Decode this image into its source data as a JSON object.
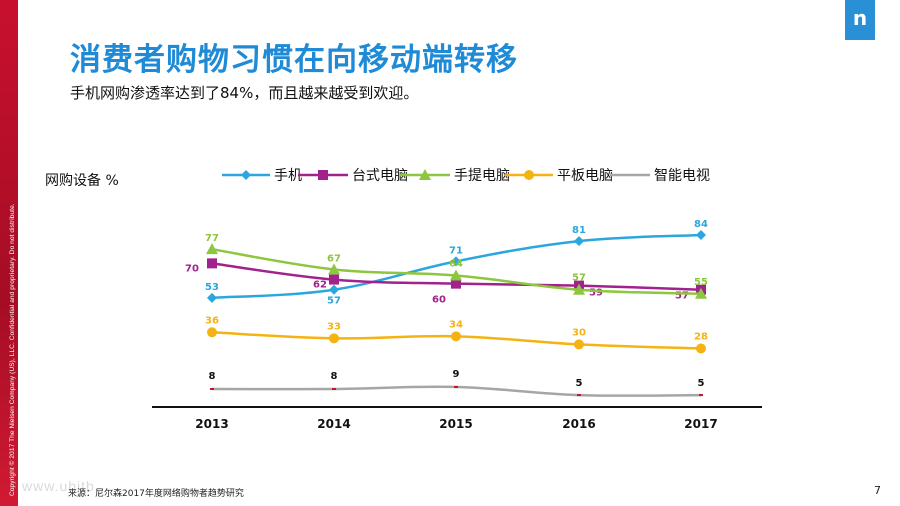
{
  "slide": {
    "title": "消费者购物习惯在向移动端转移",
    "subtitle": "手机网购渗透率达到了84%，而且越来越受到欢迎。",
    "source": "来源：尼尔森2017年度网络购物者趋势研究",
    "page_number": "7",
    "copyright": "Copyright © 2017 The Nielsen Company (US), LLC. Confidential and proprietary. Do not distribute.",
    "logo_letter": "n",
    "watermark": "www.ubitb...",
    "accent_color": "#1f8ad6",
    "brand_red": "#c8102e"
  },
  "chart_data": {
    "type": "line",
    "title": "",
    "ylabel": "网购设备  %",
    "xlabel": "",
    "categories": [
      "2013",
      "2014",
      "2015",
      "2016",
      "2017"
    ],
    "ylim": [
      0,
      90
    ],
    "grid": false,
    "legend_position": "top",
    "series": [
      {
        "name": "手机",
        "color": "#2ba6de",
        "marker": "diamond",
        "values": [
          53,
          57,
          71,
          81,
          84
        ]
      },
      {
        "name": "台式电脑",
        "color": "#a1228c",
        "marker": "square",
        "values": [
          70,
          62,
          60,
          59,
          57
        ]
      },
      {
        "name": "手提电脑",
        "color": "#8dc63f",
        "marker": "triangle",
        "values": [
          77,
          67,
          64,
          57,
          55
        ]
      },
      {
        "name": "平板电脑",
        "color": "#f5b313",
        "marker": "circle",
        "values": [
          36,
          33,
          34,
          30,
          28
        ]
      },
      {
        "name": "智能电视",
        "color": "#a6a6a6",
        "marker": "dash",
        "values": [
          8,
          8,
          9,
          5,
          5
        ]
      }
    ]
  }
}
